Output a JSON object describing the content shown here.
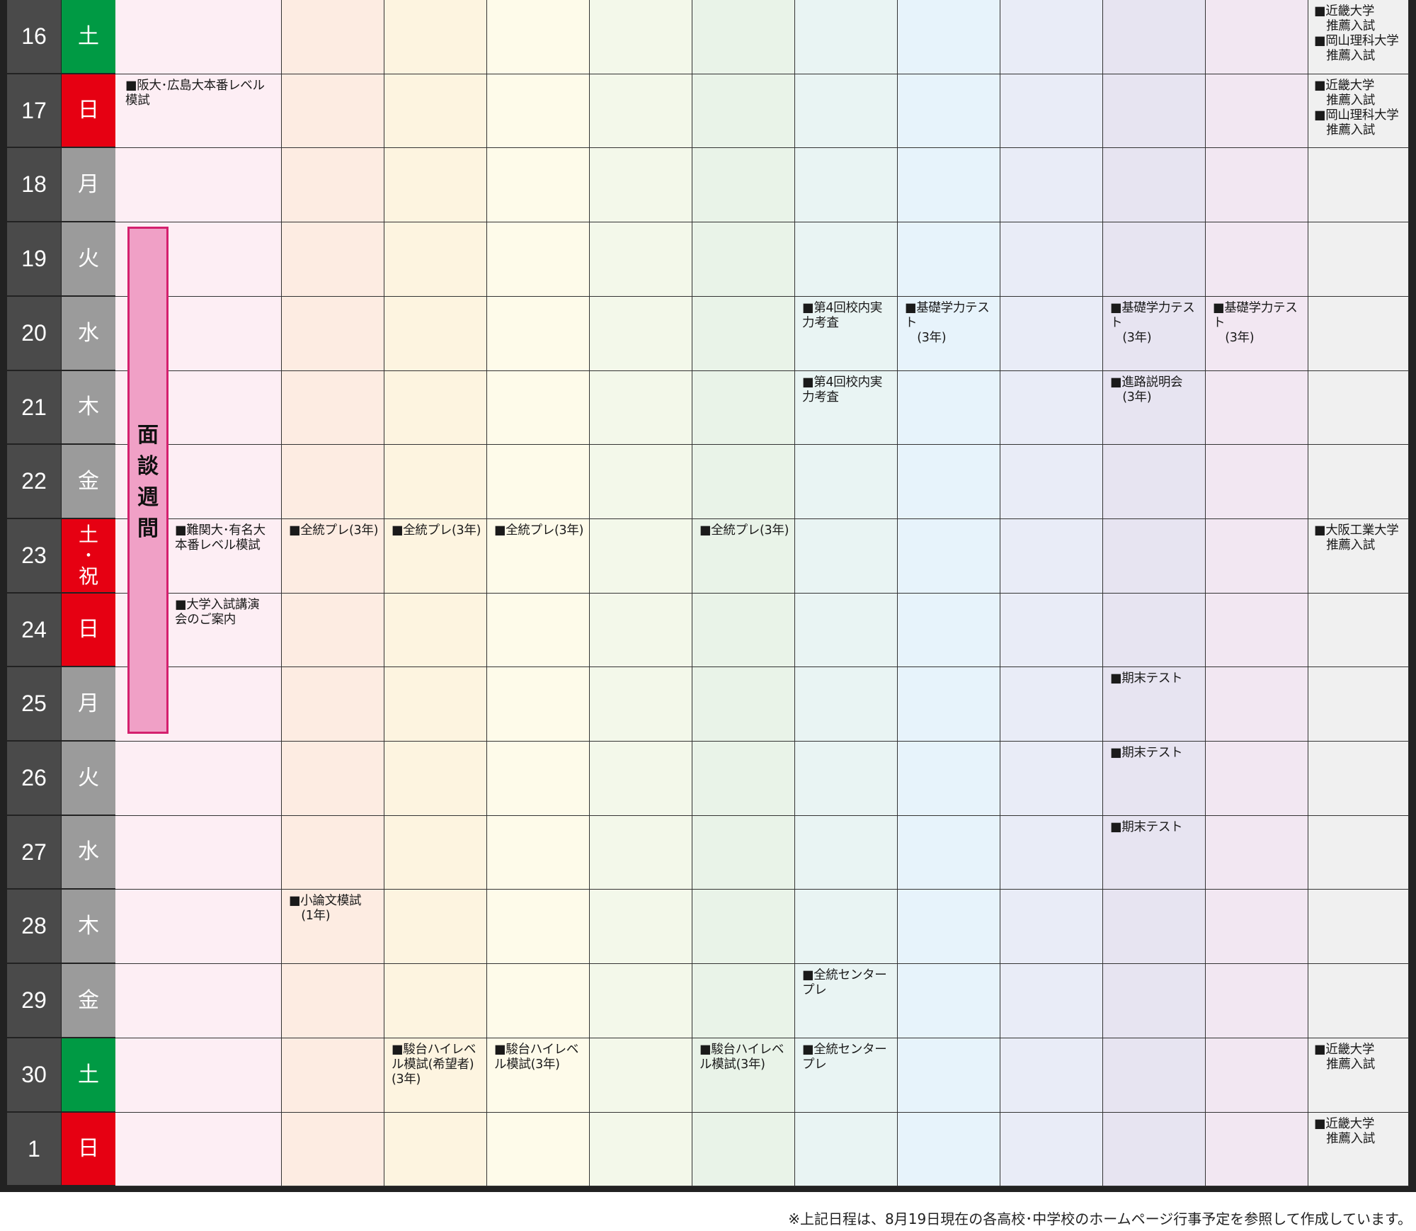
{
  "colors": {
    "sat": "#009a44",
    "sun": "#e60012",
    "weekday": "#9b9b9b",
    "daynum": "#4a4a4a",
    "columns": [
      "#fdeef4",
      "#fdece2",
      "#fdf4e0",
      "#fefbea",
      "#f3f8ea",
      "#e9f3e8",
      "#e9f4f3",
      "#e7f3fb",
      "#e9ecf7",
      "#e7e4f1",
      "#f2e7f2",
      "#f0f0f0"
    ]
  },
  "rows": [
    {
      "day": "16",
      "dow": [
        "土"
      ],
      "type": "sat",
      "events": [
        null,
        null,
        null,
        null,
        null,
        null,
        null,
        null,
        null,
        null,
        null,
        "■近畿大学\n　推薦入試\n■岡山理科大学\n　推薦入試"
      ]
    },
    {
      "day": "17",
      "dow": [
        "日"
      ],
      "type": "sun",
      "events": [
        "■阪大･広島大本番レベル\n模試",
        null,
        null,
        null,
        null,
        null,
        null,
        null,
        null,
        null,
        null,
        "■近畿大学\n　推薦入試\n■岡山理科大学\n　推薦入試"
      ]
    },
    {
      "day": "18",
      "dow": [
        "月"
      ],
      "type": "weekday",
      "events": [
        null,
        null,
        null,
        null,
        null,
        null,
        null,
        null,
        null,
        null,
        null,
        null
      ]
    },
    {
      "day": "19",
      "dow": [
        "火"
      ],
      "type": "weekday",
      "events": [
        null,
        null,
        null,
        null,
        null,
        null,
        null,
        null,
        null,
        null,
        null,
        null
      ]
    },
    {
      "day": "20",
      "dow": [
        "水"
      ],
      "type": "weekday",
      "events": [
        null,
        null,
        null,
        null,
        null,
        null,
        "■第4回校内実\n力考査",
        "■基礎学力テスト\n　(3年)",
        null,
        "■基礎学力テスト\n　(3年)",
        "■基礎学力テスト\n　(3年)",
        null
      ]
    },
    {
      "day": "21",
      "dow": [
        "木"
      ],
      "type": "weekday",
      "events": [
        null,
        null,
        null,
        null,
        null,
        null,
        "■第4回校内実\n力考査",
        null,
        null,
        "■進路説明会\n　(3年)",
        null,
        null
      ]
    },
    {
      "day": "22",
      "dow": [
        "金"
      ],
      "type": "weekday",
      "events": [
        null,
        null,
        null,
        null,
        null,
        null,
        null,
        null,
        null,
        null,
        null,
        null
      ]
    },
    {
      "day": "23",
      "dow": [
        "土",
        "･",
        "祝"
      ],
      "type": "sun",
      "events": [
        "■難関大･有名大\n本番レベル模試",
        "■全統プレ(3年)",
        "■全統プレ(3年)",
        "■全統プレ(3年)",
        null,
        "■全統プレ(3年)",
        null,
        null,
        null,
        null,
        null,
        "■大阪工業大学\n　推薦入試"
      ]
    },
    {
      "day": "24",
      "dow": [
        "日"
      ],
      "type": "sun",
      "events": [
        "■大学入試講演\n会のご案内",
        null,
        null,
        null,
        null,
        null,
        null,
        null,
        null,
        null,
        null,
        null
      ]
    },
    {
      "day": "25",
      "dow": [
        "月"
      ],
      "type": "weekday",
      "events": [
        null,
        null,
        null,
        null,
        null,
        null,
        null,
        null,
        null,
        "■期末テスト",
        null,
        null
      ]
    },
    {
      "day": "26",
      "dow": [
        "火"
      ],
      "type": "weekday",
      "events": [
        null,
        null,
        null,
        null,
        null,
        null,
        null,
        null,
        null,
        "■期末テスト",
        null,
        null
      ]
    },
    {
      "day": "27",
      "dow": [
        "水"
      ],
      "type": "weekday",
      "events": [
        null,
        null,
        null,
        null,
        null,
        null,
        null,
        null,
        null,
        "■期末テスト",
        null,
        null
      ]
    },
    {
      "day": "28",
      "dow": [
        "木"
      ],
      "type": "weekday",
      "events": [
        null,
        "■小論文模試\n　(1年)",
        null,
        null,
        null,
        null,
        null,
        null,
        null,
        null,
        null,
        null
      ]
    },
    {
      "day": "29",
      "dow": [
        "金"
      ],
      "type": "weekday",
      "events": [
        null,
        null,
        null,
        null,
        null,
        null,
        "■全統センター\nプレ",
        null,
        null,
        null,
        null,
        null
      ]
    },
    {
      "day": "30",
      "dow": [
        "土"
      ],
      "type": "sat",
      "events": [
        null,
        null,
        "■駿台ハイレベ\nル模試(希望者)\n(3年)",
        "■駿台ハイレベ\nル模試(3年)",
        null,
        "■駿台ハイレベ\nル模試(3年)",
        "■全統センター\nプレ",
        null,
        null,
        null,
        null,
        "■近畿大学\n　推薦入試"
      ]
    },
    {
      "day": "1",
      "dow": [
        "日"
      ],
      "type": "sun",
      "events": [
        null,
        null,
        null,
        null,
        null,
        null,
        null,
        null,
        null,
        null,
        null,
        "■近畿大学\n　推薦入試"
      ]
    }
  ],
  "mendan_label": [
    "面",
    "談",
    "週",
    "間"
  ],
  "footnote": "※上記日程は、8月19日現在の各高校･中学校のホームページ行事予定を参照して作成しています。"
}
